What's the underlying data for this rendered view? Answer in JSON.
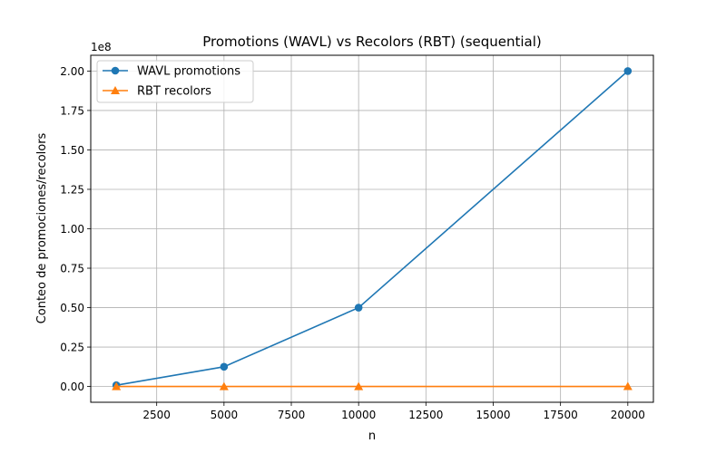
{
  "chart_data": {
    "type": "line",
    "title": "Promotions (WAVL) vs Recolors (RBT) (sequential)",
    "xlabel": "n",
    "ylabel": "Conteo de promociones/recolors",
    "y_offset_label": "1e8",
    "x": [
      1000,
      5000,
      10000,
      20000
    ],
    "series": [
      {
        "name": "WAVL promotions",
        "color": "#1f77b4",
        "marker": "circle",
        "values": [
          800000,
          12500000,
          50000000,
          200000000
        ]
      },
      {
        "name": "RBT recolors",
        "color": "#ff7f0e",
        "marker": "triangle",
        "values": [
          1000,
          5000,
          10000,
          20000
        ]
      }
    ],
    "xlim": [
      50,
      20950
    ],
    "ylim": [
      -10000000,
      210000000
    ],
    "x_ticks": [
      2500,
      5000,
      7500,
      10000,
      12500,
      15000,
      17500,
      20000
    ],
    "y_ticks": [
      0,
      25000000,
      50000000,
      75000000,
      100000000,
      125000000,
      150000000,
      175000000,
      200000000
    ],
    "x_tick_labels": [
      "2500",
      "5000",
      "7500",
      "10000",
      "12500",
      "15000",
      "17500",
      "20000"
    ],
    "y_tick_labels": [
      "0.00",
      "0.25",
      "0.50",
      "0.75",
      "1.00",
      "1.25",
      "1.50",
      "1.75",
      "2.00"
    ],
    "grid": true,
    "legend": "top-left"
  }
}
